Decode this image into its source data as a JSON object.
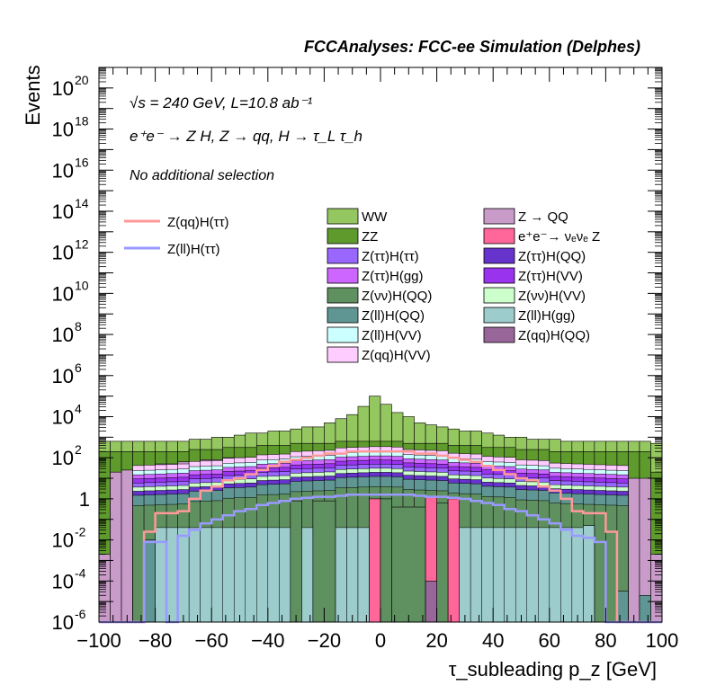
{
  "header": {
    "title": "FCCAnalyses: FCC-ee Simulation (Delphes)"
  },
  "annotations": {
    "energy": "√s = 240 GeV, L=10.8 ab⁻¹",
    "process": "e⁺e⁻ → Z H, Z → qq, H → τ_L τ_h",
    "selection": "No additional selection"
  },
  "chart_data": {
    "type": "histogram",
    "xlabel": "τ_subleading p_z [GeV]",
    "ylabel": "Events",
    "xlim": [
      -100,
      100
    ],
    "ylim": [
      1e-06,
      1e+21
    ],
    "log_y": true,
    "bin_width": 4,
    "xticks": [
      "−100",
      "−80",
      "−60",
      "−40",
      "−20",
      "0",
      "20",
      "40",
      "60",
      "80",
      "100"
    ],
    "yticks": [
      {
        "base": "10",
        "exp": "-6",
        "text": ""
      },
      {
        "base": "10",
        "exp": "-4",
        "text": ""
      },
      {
        "base": "10",
        "exp": "-2",
        "text": ""
      },
      {
        "base": "",
        "exp": "",
        "text": "1"
      },
      {
        "base": "10",
        "exp": "2",
        "text": ""
      },
      {
        "base": "10",
        "exp": "4",
        "text": ""
      },
      {
        "base": "10",
        "exp": "6",
        "text": ""
      },
      {
        "base": "10",
        "exp": "8",
        "text": ""
      },
      {
        "base": "10",
        "exp": "10",
        "text": ""
      },
      {
        "base": "10",
        "exp": "12",
        "text": ""
      },
      {
        "base": "10",
        "exp": "14",
        "text": ""
      },
      {
        "base": "10",
        "exp": "16",
        "text": ""
      },
      {
        "base": "10",
        "exp": "18",
        "text": ""
      },
      {
        "base": "10",
        "exp": "20",
        "text": ""
      }
    ],
    "stack_logtotals": [
      {
        "name": "Z → QQ",
        "color": "#c99bc9",
        "lg": [
          -2.7,
          1.3,
          1.4,
          1.5,
          1.6,
          1.7,
          1.7,
          1.8,
          1.8,
          1.9,
          1.9,
          2.0,
          2.0,
          2.0,
          2.1,
          2.1,
          2.1,
          2.2,
          2.2,
          2.2,
          2.2,
          2.2,
          2.2,
          2.2,
          2.2,
          2.1,
          2.1,
          2.1,
          2.0,
          2.0,
          2.0,
          1.9,
          1.9,
          1.8,
          1.8,
          1.7,
          1.7,
          1.6,
          1.5,
          1.4,
          1.3,
          1.3,
          1.2,
          1.1,
          1.0,
          1.0,
          1.0,
          1.0,
          1.0,
          -2.7
        ]
      },
      {
        "name": "ZZ",
        "color": "#5e9a2c",
        "lg": [
          2.3,
          2.3,
          2.3,
          2.3,
          2.3,
          2.3,
          2.3,
          2.3,
          2.4,
          2.4,
          2.4,
          2.5,
          2.5,
          2.5,
          2.6,
          2.6,
          2.6,
          2.7,
          2.7,
          2.7,
          2.7,
          2.8,
          2.8,
          2.8,
          2.8,
          2.8,
          2.8,
          2.7,
          2.7,
          2.7,
          2.7,
          2.6,
          2.6,
          2.6,
          2.5,
          2.5,
          2.5,
          2.4,
          2.4,
          2.4,
          2.3,
          2.3,
          2.3,
          2.3,
          2.3,
          2.3,
          2.3,
          2.3,
          2.3,
          1.3
        ]
      },
      {
        "name": "WW",
        "color": "#95c760",
        "lg": [
          2.8,
          2.8,
          2.8,
          2.8,
          2.8,
          2.8,
          2.8,
          2.8,
          2.9,
          2.9,
          3.0,
          3.0,
          3.1,
          3.2,
          3.2,
          3.3,
          3.3,
          3.4,
          3.5,
          3.5,
          3.7,
          3.9,
          4.1,
          4.5,
          5.0,
          4.6,
          4.2,
          4.0,
          3.7,
          3.6,
          3.5,
          3.4,
          3.3,
          3.3,
          3.2,
          3.1,
          3.0,
          3.0,
          2.9,
          2.9,
          2.9,
          2.8,
          2.8,
          2.8,
          2.8,
          2.8,
          2.8,
          2.8,
          2.8,
          2.7
        ]
      }
    ],
    "inner_bands": [
      {
        "name": "Z(qq)H(VV)",
        "color": "#ffccff",
        "tot": [
          2.55,
          0.25
        ]
      },
      {
        "name": "Z(ll)H(VV)",
        "color": "#ccffff",
        "tot": [
          2.3,
          0.28
        ]
      },
      {
        "name": "Z(ττ)H(gg)",
        "color": "#cc66ff",
        "tot": [
          2.1,
          0.25
        ]
      },
      {
        "name": "Z(ττ)H(VV)",
        "color": "#9933ee",
        "tot": [
          1.9,
          0.28
        ]
      },
      {
        "name": "Z(ττ)H(ττ)",
        "color": "#9966ff",
        "tot": [
          1.7,
          0.25
        ]
      },
      {
        "name": "Z(νν)H(VV)",
        "color": "#ccffcc",
        "tot": [
          1.5,
          0.25
        ]
      },
      {
        "name": "Z(ττ)H(QQ)",
        "color": "#6633cc",
        "tot": [
          1.3,
          0.2
        ]
      },
      {
        "name": "Z(ll)H(QQ)",
        "color": "#5f9593",
        "tot": [
          1.1,
          0.35
        ]
      },
      {
        "name": "Z(νν)H(QQ)",
        "color": "#5f9060",
        "tot": [
          0.6,
          0.3
        ]
      }
    ],
    "base_fill": {
      "name": "Z(ll)H(gg)",
      "color": "#9ccccc",
      "lg": -1.4,
      "from": -80,
      "to": 76
    },
    "spikes": [
      {
        "x0": -32,
        "x1": -28,
        "lg": -0.1,
        "color": "#5f9060"
      },
      {
        "x0": -24,
        "x1": -16,
        "lg": -0.1,
        "color": "#5f9060"
      },
      {
        "x0": -4,
        "x1": 0,
        "lg": 0.0,
        "color": "#ff6699"
      },
      {
        "x0": 0,
        "x1": 4,
        "lg": 0.0,
        "color": "#5f9060"
      },
      {
        "x0": 4,
        "x1": 16,
        "lg": -0.4,
        "color": "#5f9060"
      },
      {
        "x0": 16,
        "x1": 20,
        "lg": 0.1,
        "color": "#ff6699"
      },
      {
        "x0": 20,
        "x1": 24,
        "lg": -0.2,
        "color": "#5f9060"
      },
      {
        "x0": 24,
        "x1": 28,
        "lg": 0.0,
        "color": "#ff6699"
      },
      {
        "x0": 16,
        "x1": 20,
        "lg": -4.0,
        "color": "#996699"
      },
      {
        "x0": 72,
        "x1": 76,
        "lg": -1.3,
        "color": "#9ccccc"
      },
      {
        "x0": 84,
        "x1": 88,
        "lg": -4.5,
        "color": "#5f9593"
      },
      {
        "x0": 92,
        "x1": 96,
        "lg": -4.7,
        "color": "#5f9593"
      },
      {
        "x0": -84,
        "x1": -80,
        "lg": -2.0,
        "color": "#5f9593"
      }
    ],
    "signal_lines": [
      {
        "name": "Z(qq)H(ττ)",
        "color": "#ff9999",
        "lg": [
          -6.0,
          -6.0,
          -6.0,
          -6.0,
          -1.6,
          -0.7,
          -0.7,
          -0.6,
          0.0,
          0.4,
          0.6,
          0.9,
          1.0,
          1.2,
          1.4,
          1.6,
          1.8,
          1.9,
          2.0,
          2.1,
          2.2,
          2.2,
          2.3,
          2.3,
          2.3,
          2.3,
          2.3,
          2.3,
          2.2,
          2.2,
          2.1,
          2.0,
          1.9,
          1.8,
          1.6,
          1.4,
          1.2,
          1.0,
          0.9,
          0.6,
          0.4,
          0.0,
          -0.6,
          -0.7,
          -0.7,
          -1.6,
          -6.0,
          -6.0,
          -6.0,
          -6.0
        ]
      },
      {
        "name": "Z(ll)H(ττ)",
        "color": "#9999ff",
        "lg": [
          -6.0,
          -6.0,
          -6.0,
          -6.0,
          -2.1,
          -2.1,
          -6.0,
          -1.8,
          -1.5,
          -1.2,
          -1.0,
          -0.8,
          -0.6,
          -0.5,
          -0.3,
          -0.2,
          -0.1,
          0.0,
          0.05,
          0.1,
          0.1,
          0.15,
          0.2,
          0.2,
          0.2,
          0.2,
          0.2,
          0.2,
          0.15,
          0.1,
          0.1,
          0.05,
          0.0,
          -0.1,
          -0.2,
          -0.3,
          -0.5,
          -0.6,
          -0.8,
          -1.0,
          -1.2,
          -1.5,
          -1.8,
          -1.9,
          -2.1,
          -6.0,
          -6.0,
          -6.0,
          -6.0,
          -6.0
        ]
      }
    ],
    "legend_signals": [
      {
        "name": "Z(qq)H(ττ)",
        "color": "#ff9999"
      },
      {
        "name": "Z(ll)H(ττ)",
        "color": "#9999ff"
      }
    ],
    "legend_backgrounds": [
      {
        "name": "WW",
        "color": "#95c760"
      },
      {
        "name": "Z → QQ",
        "color": "#c99bc9"
      },
      {
        "name": "ZZ",
        "color": "#5e9a2c"
      },
      {
        "name": "e⁺e⁻→ νₑνₑ Z",
        "color": "#ff6699"
      },
      {
        "name": "Z(ττ)H(ττ)",
        "color": "#9966ff"
      },
      {
        "name": "Z(ττ)H(QQ)",
        "color": "#6633cc"
      },
      {
        "name": "Z(ττ)H(gg)",
        "color": "#cc66ff"
      },
      {
        "name": "Z(ττ)H(VV)",
        "color": "#9933ee"
      },
      {
        "name": "Z(νν)H(QQ)",
        "color": "#5f9060"
      },
      {
        "name": "Z(νν)H(VV)",
        "color": "#ccffcc"
      },
      {
        "name": "Z(ll)H(QQ)",
        "color": "#5f9593"
      },
      {
        "name": "Z(ll)H(gg)",
        "color": "#9ccccc"
      },
      {
        "name": "Z(ll)H(VV)",
        "color": "#ccffff"
      },
      {
        "name": "Z(qq)H(QQ)",
        "color": "#996699"
      },
      {
        "name": "Z(qq)H(VV)",
        "color": "#ffccff"
      }
    ]
  }
}
